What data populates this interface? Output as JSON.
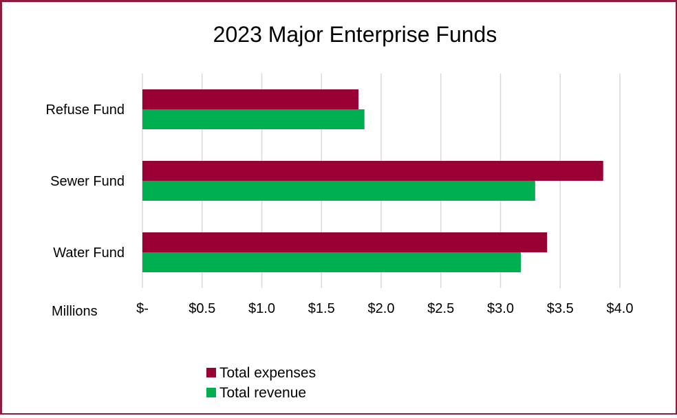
{
  "chart_data": {
    "type": "bar",
    "orientation": "horizontal",
    "title": "2023 Major Enterprise Funds",
    "xlabel": "Millions",
    "ylabel": "",
    "categories": [
      "Refuse Fund",
      "Sewer Fund",
      "Water Fund"
    ],
    "series": [
      {
        "name": "Total expenses",
        "color": "#990033",
        "values": [
          1.81,
          3.86,
          3.39
        ]
      },
      {
        "name": "Total revenue",
        "color": "#00b050",
        "values": [
          1.86,
          3.29,
          3.17
        ]
      }
    ],
    "xlim": [
      0,
      4.0
    ],
    "xticks": [
      0,
      0.5,
      1.0,
      1.5,
      2.0,
      2.5,
      3.0,
      3.5,
      4.0
    ],
    "xtick_labels": [
      "$-",
      "$0.5",
      "$1.0",
      "$1.5",
      "$2.0",
      "$2.5",
      "$3.0",
      "$3.5",
      "$4.0"
    ],
    "grid": true,
    "legend_position": "bottom"
  }
}
